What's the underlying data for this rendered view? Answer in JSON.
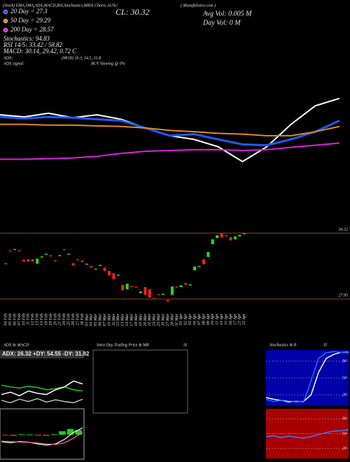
{
  "header": {
    "title": "(Stock) EMA,SMA,ADX,MACD,RSI,Stochastics,MRSI Charts AUSU",
    "site": "( MunafaSutra.com )",
    "close": "CL: 30.32",
    "avg_vol": "Avg Vol: 0.005 M",
    "day_vol": "Day Vol: 0   M"
  },
  "stats": {
    "stochastics": "Stochastics: 94.83",
    "rsi": "RSI 14/5: 33.42 / 58.82",
    "macd": "MACD: 30.14, 29.42, 0.72 C",
    "adx_label": "ADX:",
    "adx_value": "(MGR) 26.3, 54.5, 31.8",
    "adx_signal_label": "ADX  signal:",
    "adx_signal": "BUY Slowing @ 0%"
  },
  "chart_data": [
    {
      "type": "line",
      "ylim": [
        27,
        31.5
      ],
      "series": [
        {
          "color": "#ffffff",
          "values": [
            30.6,
            30.52,
            30.66,
            30.49,
            30.6,
            30.43,
            30.1,
            29.81,
            29.67,
            29.39,
            28.83,
            29.39,
            30.24,
            30.94,
            31.22
          ]
        },
        {
          "name": "20 Day = 27.3",
          "color": "#1a5cff",
          "values": [
            30.52,
            30.46,
            30.52,
            30.49,
            30.43,
            30.38,
            30.1,
            29.81,
            29.87,
            29.67,
            29.48,
            29.45,
            29.67,
            29.96,
            30.38
          ]
        },
        {
          "name": "50 Day = 29.29",
          "color": "#e08a1e",
          "values": [
            30.24,
            30.24,
            30.21,
            30.21,
            30.18,
            30.16,
            30.1,
            30.01,
            29.96,
            29.9,
            29.87,
            29.81,
            29.81,
            29.96,
            30.16
          ]
        },
        {
          "name": "200 Day = 28.57",
          "color": "#e020e0",
          "values": [
            28.92,
            28.92,
            28.94,
            28.97,
            29.03,
            29.14,
            29.22,
            29.25,
            29.28,
            29.28,
            29.25,
            29.28,
            29.37,
            29.45,
            29.53
          ]
        }
      ]
    },
    {
      "type": "candlestick",
      "ylim": [
        27.5,
        30.9
      ],
      "up_color": "#22dd22",
      "down_color": "#ee2222",
      "level_color": "#8a4a14",
      "levels": [
        30.32,
        27.95
      ],
      "categories": [
        "04 Feb",
        "05 Feb",
        "06 Feb",
        "07 Feb",
        "10 Feb",
        "11 Feb",
        "12 Feb",
        "13 Feb",
        "14 Feb",
        "18 Feb",
        "19 Feb",
        "20 Feb",
        "21 Feb",
        "24 Feb",
        "25 Feb",
        "26 Feb",
        "27 Feb",
        "28 Feb",
        "03 Mar",
        "04 Mar",
        "05 Mar",
        "06 Mar",
        "07 Mar",
        "10 Mar",
        "11 Mar",
        "12 Mar",
        "13 Mar",
        "14 Mar",
        "17 Mar",
        "18 Mar",
        "19 Mar",
        "20 Mar",
        "21 Mar",
        "24 Mar",
        "25 Mar",
        "26 Mar",
        "27 Mar",
        "28 Mar",
        "31 Mar",
        "01 Apr",
        "02 Apr",
        "03 Apr",
        "04 Apr",
        "07 Apr",
        "08 Apr",
        "09 Apr",
        "10 Apr",
        "11 Apr",
        "14 Apr",
        "15 Apr",
        "16 Apr",
        "17 Apr",
        "21 Apr",
        "22 Apr"
      ],
      "open": [
        29.24,
        29.7,
        29.72,
        29.7,
        29.36,
        29.38,
        29.38,
        29.22,
        29.46,
        29.56,
        29.52,
        29.34,
        29.5,
        29.74,
        29.56,
        29.24,
        29.38,
        29.34,
        29.2,
        29.14,
        29.02,
        29.16,
        29.08,
        28.96,
        28.88,
        28.8,
        28.46,
        28.3,
        28.42,
        28.4,
        28.16,
        28.38,
        28.3,
        27.98,
        28.12,
        28.1,
        27.92,
        28.1,
        28.4,
        28.38,
        28.52,
        28.44,
        28.98,
        29.1,
        29.38,
        29.46,
        29.92,
        30.14,
        30.32,
        30.24,
        30.18,
        30.1,
        30.2,
        30.28
      ],
      "close": [
        29.2,
        29.66,
        29.75,
        29.68,
        29.3,
        29.3,
        29.3,
        29.4,
        29.48,
        29.58,
        29.5,
        29.3,
        29.53,
        29.72,
        29.58,
        29.16,
        29.36,
        29.28,
        29.22,
        29.08,
        29.04,
        29.18,
        28.96,
        28.8,
        28.66,
        28.82,
        28.26,
        28.5,
        28.4,
        28.38,
        28.22,
        28.1,
        28.0,
        27.96,
        28.1,
        28.14,
        27.86,
        28.4,
        28.36,
        28.44,
        28.46,
        28.48,
        29.12,
        29.14,
        29.2,
        29.64,
        30.1,
        30.24,
        30.16,
        30.2,
        30.06,
        30.2,
        30.26,
        30.32
      ]
    },
    {
      "type": "line",
      "title": "ADX  & MACD",
      "subtitle": "ADX: 26.32  +DY: 54.55  -DY: 31.82",
      "ylim": [
        0,
        80
      ],
      "series": [
        {
          "color": "#22cc22",
          "values": [
            38,
            35,
            33,
            36,
            34,
            30,
            32,
            35,
            30,
            28
          ]
        },
        {
          "color": "#ffffff",
          "values": [
            22,
            26,
            20,
            28,
            24,
            22,
            30,
            35,
            45,
            40
          ]
        },
        {
          "color": "#bbbbbb",
          "values": [
            12,
            8,
            14,
            10,
            15,
            9,
            13,
            10,
            8,
            14
          ]
        }
      ]
    },
    {
      "type": "macd",
      "ylim": [
        -1,
        1
      ],
      "series": [
        {
          "color": "#ffffff",
          "values": [
            -0.3,
            -0.35,
            -0.3,
            -0.32,
            -0.4,
            -0.45,
            -0.4,
            -0.2,
            0.1,
            0.3
          ]
        },
        {
          "color": "#ff66aa",
          "values": [
            -0.28,
            -0.3,
            -0.32,
            -0.33,
            -0.36,
            -0.4,
            -0.42,
            -0.35,
            -0.15,
            0.1
          ]
        }
      ],
      "histogram": {
        "up_color": "#22cc22",
        "down_color": "#ee2222",
        "values": [
          -0.02,
          -0.05,
          0.02,
          0.01,
          -0.04,
          -0.05,
          0.02,
          0.15,
          0.25,
          0.2
        ]
      }
    },
    {
      "type": "panel",
      "title": "Intra  Day Trading Price  & MR",
      "subtitle": "SI"
    },
    {
      "type": "line",
      "title": "Stochastics & R",
      "subtitle": "SI",
      "background": "#0000a8",
      "ylim": [
        0,
        100
      ],
      "yticks": [
        20,
        50,
        80
      ],
      "series": [
        {
          "color": "#ffffff",
          "values": [
            15,
            12,
            10,
            8,
            8,
            8,
            20,
            60,
            85,
            92,
            96,
            96
          ]
        },
        {
          "color": "#2a6cff",
          "values": [
            12,
            8,
            10,
            6,
            9,
            7,
            45,
            85,
            95,
            97,
            96,
            95
          ]
        }
      ]
    },
    {
      "type": "line",
      "background": "#a80000",
      "ylim": [
        0,
        100
      ],
      "yticks": [
        20,
        50,
        80
      ],
      "series": [
        {
          "color": "#3a7cff",
          "values": [
            44,
            46,
            42,
            45,
            43,
            41,
            44,
            48,
            52,
            55,
            56,
            58
          ]
        }
      ]
    }
  ]
}
